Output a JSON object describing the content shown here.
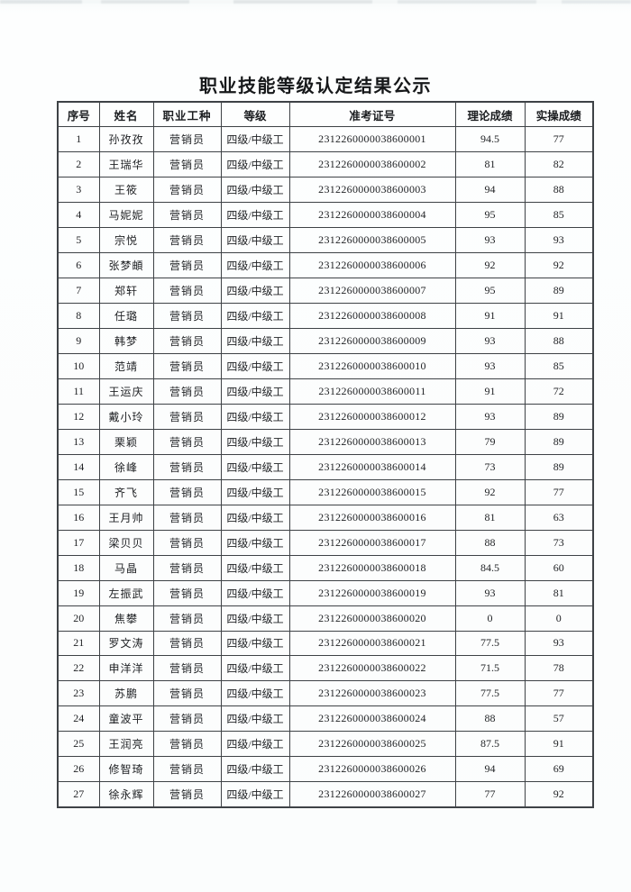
{
  "title": "职业技能等级认定结果公示",
  "table": {
    "headers": [
      "序号",
      "姓名",
      "职业工种",
      "等级",
      "准考证号",
      "理论成绩",
      "实操成绩"
    ],
    "rows": [
      [
        "1",
        "孙孜孜",
        "营销员",
        "四级/中级工",
        "2312260000038600001",
        "94.5",
        "77"
      ],
      [
        "2",
        "王瑞华",
        "营销员",
        "四级/中级工",
        "2312260000038600002",
        "81",
        "82"
      ],
      [
        "3",
        "王筱",
        "营销员",
        "四级/中级工",
        "2312260000038600003",
        "94",
        "88"
      ],
      [
        "4",
        "马妮妮",
        "营销员",
        "四级/中级工",
        "2312260000038600004",
        "95",
        "85"
      ],
      [
        "5",
        "宗悦",
        "营销员",
        "四级/中级工",
        "2312260000038600005",
        "93",
        "93"
      ],
      [
        "6",
        "张梦頔",
        "营销员",
        "四级/中级工",
        "2312260000038600006",
        "92",
        "92"
      ],
      [
        "7",
        "郑轩",
        "营销员",
        "四级/中级工",
        "2312260000038600007",
        "95",
        "89"
      ],
      [
        "8",
        "任璐",
        "营销员",
        "四级/中级工",
        "2312260000038600008",
        "91",
        "91"
      ],
      [
        "9",
        "韩梦",
        "营销员",
        "四级/中级工",
        "2312260000038600009",
        "93",
        "88"
      ],
      [
        "10",
        "范靖",
        "营销员",
        "四级/中级工",
        "2312260000038600010",
        "93",
        "85"
      ],
      [
        "11",
        "王运庆",
        "营销员",
        "四级/中级工",
        "2312260000038600011",
        "91",
        "72"
      ],
      [
        "12",
        "戴小玲",
        "营销员",
        "四级/中级工",
        "2312260000038600012",
        "93",
        "89"
      ],
      [
        "13",
        "栗颖",
        "营销员",
        "四级/中级工",
        "2312260000038600013",
        "79",
        "89"
      ],
      [
        "14",
        "徐峰",
        "营销员",
        "四级/中级工",
        "2312260000038600014",
        "73",
        "89"
      ],
      [
        "15",
        "齐飞",
        "营销员",
        "四级/中级工",
        "2312260000038600015",
        "92",
        "77"
      ],
      [
        "16",
        "王月帅",
        "营销员",
        "四级/中级工",
        "2312260000038600016",
        "81",
        "63"
      ],
      [
        "17",
        "梁贝贝",
        "营销员",
        "四级/中级工",
        "2312260000038600017",
        "88",
        "73"
      ],
      [
        "18",
        "马晶",
        "营销员",
        "四级/中级工",
        "2312260000038600018",
        "84.5",
        "60"
      ],
      [
        "19",
        "左振武",
        "营销员",
        "四级/中级工",
        "2312260000038600019",
        "93",
        "81"
      ],
      [
        "20",
        "焦攀",
        "营销员",
        "四级/中级工",
        "2312260000038600020",
        "0",
        "0"
      ],
      [
        "21",
        "罗文涛",
        "营销员",
        "四级/中级工",
        "2312260000038600021",
        "77.5",
        "93"
      ],
      [
        "22",
        "申洋洋",
        "营销员",
        "四级/中级工",
        "2312260000038600022",
        "71.5",
        "78"
      ],
      [
        "23",
        "苏鹏",
        "营销员",
        "四级/中级工",
        "2312260000038600023",
        "77.5",
        "77"
      ],
      [
        "24",
        "童波平",
        "营销员",
        "四级/中级工",
        "2312260000038600024",
        "88",
        "57"
      ],
      [
        "25",
        "王润亮",
        "营销员",
        "四级/中级工",
        "2312260000038600025",
        "87.5",
        "91"
      ],
      [
        "26",
        "修智琦",
        "营销员",
        "四级/中级工",
        "2312260000038600026",
        "94",
        "69"
      ],
      [
        "27",
        "徐永辉",
        "营销员",
        "四级/中级工",
        "2312260000038600027",
        "77",
        "92"
      ]
    ]
  }
}
